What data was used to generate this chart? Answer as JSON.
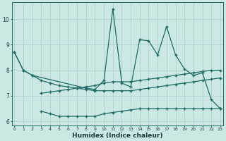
{
  "xlabel": "Humidex (Indice chaleur)",
  "xlim": [
    -0.3,
    23.3
  ],
  "ylim": [
    5.85,
    10.65
  ],
  "bg_color": "#cce8e5",
  "grid_color": "#aacfcc",
  "line_color": "#1c6b65",
  "yticks": [
    6,
    7,
    8,
    9,
    10
  ],
  "upper_smooth_x": [
    0,
    1,
    2,
    3,
    4,
    5,
    6,
    7,
    8,
    9,
    10,
    11,
    12,
    13,
    14,
    15,
    16,
    17,
    18,
    19,
    20,
    21,
    22,
    23
  ],
  "upper_smooth_y": [
    8.7,
    8.0,
    7.8,
    7.6,
    7.5,
    7.4,
    7.35,
    7.3,
    7.25,
    7.2,
    7.2,
    7.2,
    7.2,
    7.2,
    7.25,
    7.3,
    7.35,
    7.4,
    7.45,
    7.5,
    7.55,
    7.6,
    7.65,
    7.7
  ],
  "lower_flat_x": [
    3,
    4,
    5,
    6,
    7,
    8,
    9,
    10,
    11,
    12,
    13,
    14,
    15,
    16,
    17,
    18,
    19,
    20,
    21,
    22,
    23
  ],
  "lower_flat_y": [
    6.4,
    6.3,
    6.2,
    6.2,
    6.2,
    6.2,
    6.2,
    6.3,
    6.35,
    6.4,
    6.45,
    6.5,
    6.5,
    6.5,
    6.5,
    6.5,
    6.5,
    6.5,
    6.5,
    6.5,
    6.5
  ],
  "mid_rising_x": [
    3,
    4,
    5,
    6,
    7,
    8,
    9,
    10,
    11,
    12,
    13,
    14,
    15,
    16,
    17,
    18,
    19,
    20,
    21,
    22,
    23
  ],
  "mid_rising_y": [
    7.1,
    7.15,
    7.2,
    7.25,
    7.3,
    7.35,
    7.4,
    7.5,
    7.55,
    7.55,
    7.55,
    7.6,
    7.65,
    7.7,
    7.75,
    7.8,
    7.85,
    7.9,
    7.95,
    8.0,
    8.0
  ],
  "spiky_x": [
    0,
    1,
    2,
    8,
    9,
    10,
    11,
    12,
    13,
    14,
    15,
    16,
    17,
    18,
    19,
    20,
    21,
    22,
    23
  ],
  "spiky_y": [
    8.7,
    8.0,
    7.8,
    7.3,
    7.25,
    7.6,
    10.4,
    7.5,
    7.35,
    9.2,
    9.15,
    8.6,
    9.7,
    8.6,
    8.05,
    7.8,
    7.9,
    6.85,
    6.5
  ]
}
